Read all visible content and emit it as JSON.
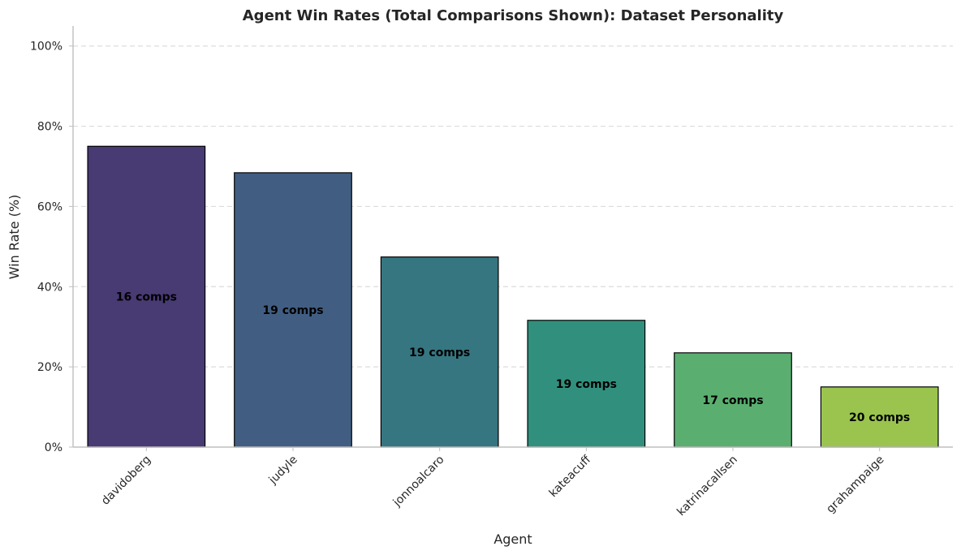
{
  "chart_data": {
    "type": "bar",
    "title": "Agent Win Rates (Total Comparisons Shown): Dataset Personality",
    "xlabel": "Agent",
    "ylabel": "Win Rate (%)",
    "ylim": [
      0,
      105
    ],
    "yticks": [
      0,
      20,
      40,
      60,
      80,
      100
    ],
    "ytick_labels": [
      "0%",
      "20%",
      "40%",
      "60%",
      "80%",
      "100%"
    ],
    "grid": "y-dashed",
    "categories": [
      "davidoberg",
      "judyle",
      "jonnoalcaro",
      "kateacuff",
      "katrinacallsen",
      "grahampaige"
    ],
    "values": [
      75.0,
      68.4,
      47.4,
      31.6,
      23.5,
      15.0
    ],
    "bar_labels": [
      "16 comps",
      "19 comps",
      "19 comps",
      "19 comps",
      "17 comps",
      "20 comps"
    ],
    "colors": [
      "#483a72",
      "#415e82",
      "#357681",
      "#31907d",
      "#5aaf70",
      "#9ac44d"
    ]
  }
}
